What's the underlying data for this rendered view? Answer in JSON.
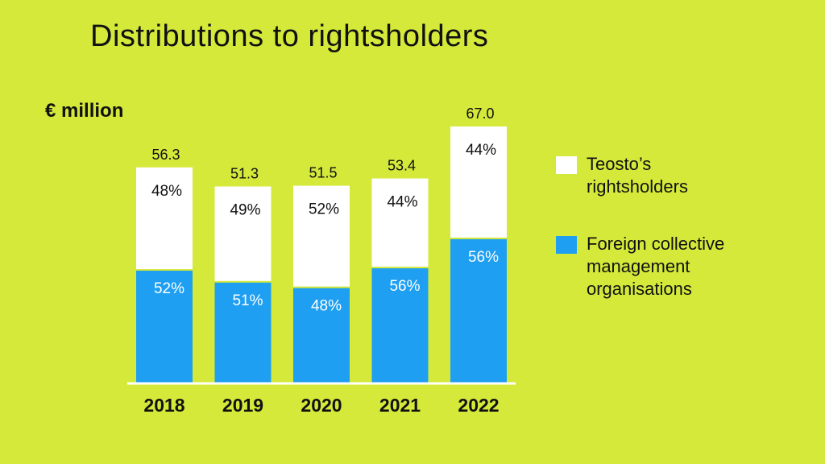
{
  "title": "Distributions to rightsholders",
  "unit_label": "€ million",
  "colors": {
    "background": "#d4e93a",
    "teosto": "#ffffff",
    "foreign": "#1e9ff2",
    "axis": "#ffffff",
    "text": "#111111",
    "foreign_label_text": "#ffffff"
  },
  "legend": {
    "items": [
      {
        "label": "Teosto’s\nrightsholders",
        "color": "#ffffff"
      },
      {
        "label": "Foreign collective\nmanagement\norganisations",
        "color": "#1e9ff2"
      }
    ]
  },
  "chart_data": {
    "type": "bar",
    "stacked": true,
    "title": "Distributions to rightsholders",
    "ylabel": "€ million",
    "xlabel": "",
    "categories": [
      "2018",
      "2019",
      "2020",
      "2021",
      "2022"
    ],
    "totals": [
      56.3,
      51.3,
      51.5,
      53.4,
      67.0
    ],
    "total_labels": [
      "56.3",
      "51.3",
      "51.5",
      "53.4",
      "67.0"
    ],
    "series": [
      {
        "name": "Foreign collective management organisations",
        "percent": [
          52,
          51,
          48,
          56,
          56
        ],
        "labels": [
          "52%",
          "51%",
          "48%",
          "56%",
          "56%"
        ]
      },
      {
        "name": "Teosto’s rightsholders",
        "percent": [
          48,
          49,
          52,
          44,
          44
        ],
        "labels": [
          "48%",
          "49%",
          "52%",
          "44%",
          "44%"
        ]
      }
    ],
    "ylim": [
      0,
      67.0
    ],
    "grid": false,
    "legend_position": "right"
  }
}
